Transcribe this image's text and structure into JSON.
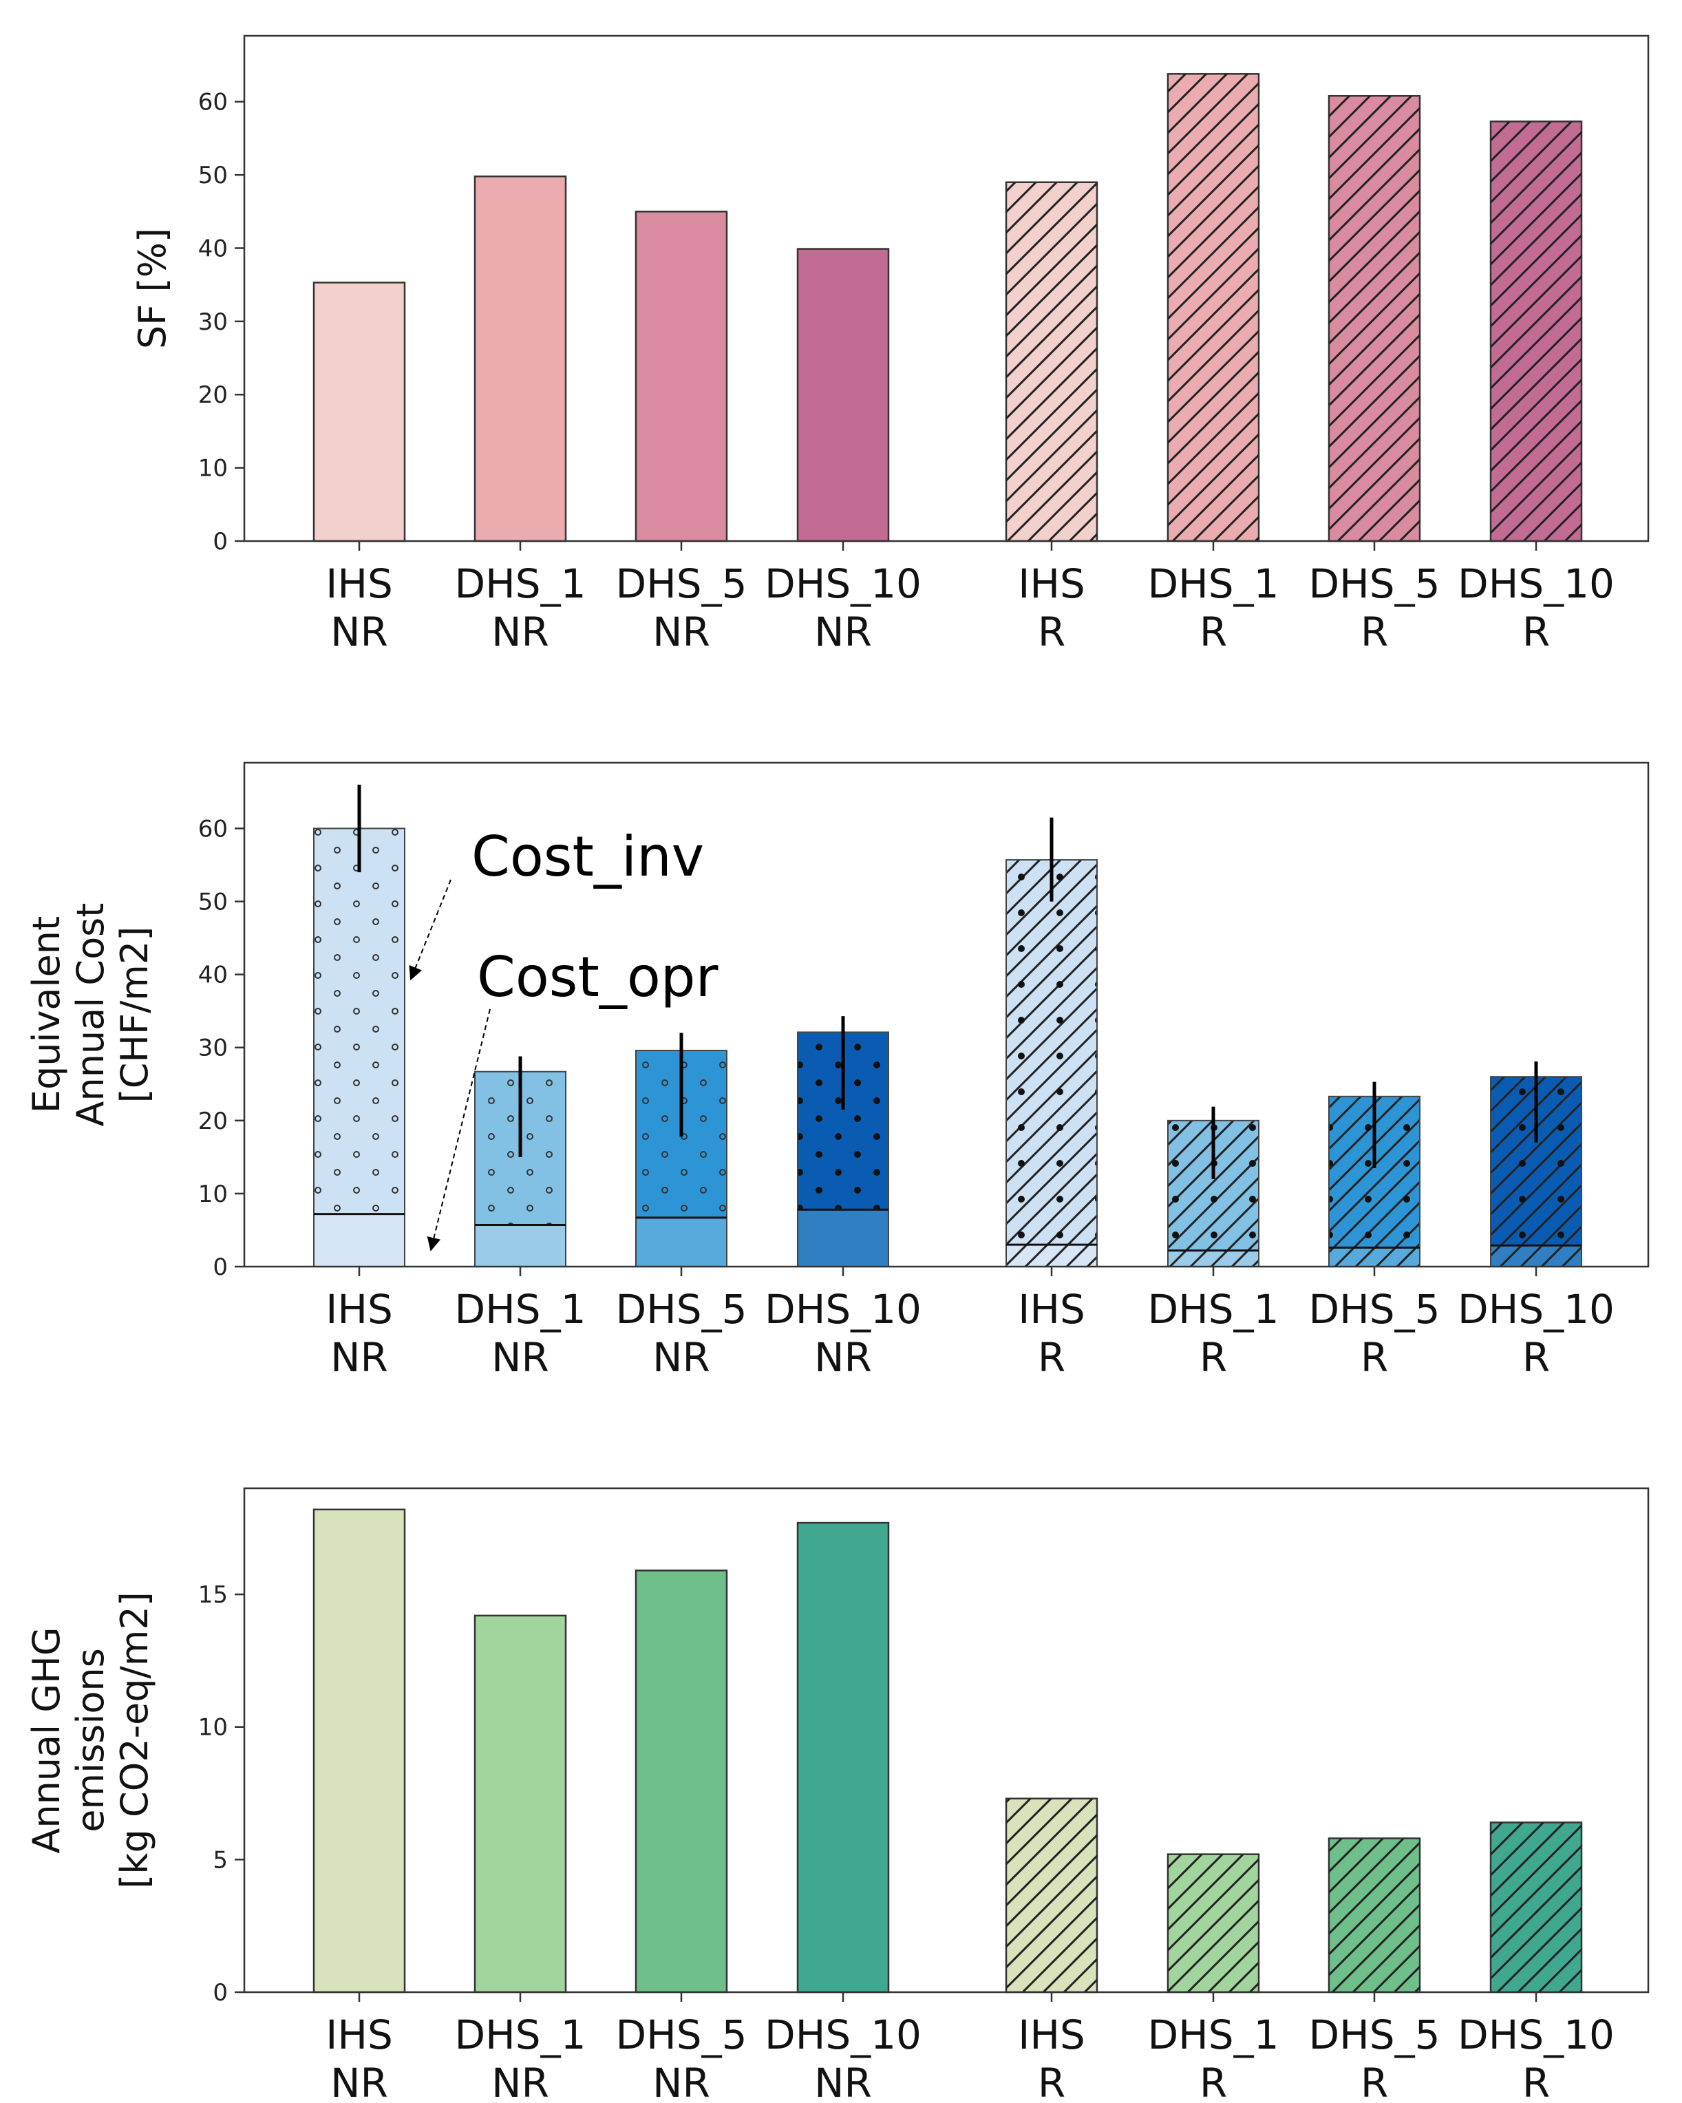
{
  "chart_data": [
    {
      "type": "bar",
      "id": "sf",
      "categories": [
        "IHS\nNR",
        "DHS_1\nNR",
        "DHS_5\nNR",
        "DHS_10\nNR",
        "IHS\nR",
        "DHS_1\nR",
        "DHS_5\nR",
        "DHS_10\nR"
      ],
      "ylabel": [
        "SF [%]"
      ],
      "ylim": [
        0,
        69
      ],
      "yticks": [
        0,
        10,
        20,
        30,
        40,
        50,
        60
      ],
      "values": [
        35.3,
        49.8,
        45.0,
        39.9,
        49.0,
        63.8,
        60.8,
        57.3
      ],
      "colors": [
        "#f2d0cc",
        "#ebacb0",
        "#d98ba0",
        "#c26c93",
        "#f2d0cc",
        "#ebacb0",
        "#d98ba0",
        "#c26c93"
      ],
      "hatch": [
        "none",
        "none",
        "none",
        "none",
        "diag",
        "diag",
        "diag",
        "diag"
      ]
    },
    {
      "type": "bar",
      "id": "cost",
      "categories": [
        "IHS\nNR",
        "DHS_1\nNR",
        "DHS_5\nNR",
        "DHS_10\nNR",
        "IHS\nR",
        "DHS_1\nR",
        "DHS_5\nR",
        "DHS_10\nR"
      ],
      "ylabel": [
        "Equivalent",
        "Annual Cost",
        "[CHF/m2]"
      ],
      "ylim": [
        0,
        69
      ],
      "yticks": [
        0,
        10,
        20,
        30,
        40,
        50,
        60
      ],
      "series": [
        {
          "name": "Cost_opr",
          "values": [
            7.2,
            5.7,
            6.7,
            7.8,
            3.0,
            2.2,
            2.6,
            2.9
          ]
        },
        {
          "name": "Cost_inv",
          "values": [
            52.8,
            21.0,
            22.9,
            24.3,
            52.7,
            17.8,
            20.7,
            23.1
          ]
        }
      ],
      "totals": [
        60.0,
        26.7,
        29.6,
        32.1,
        55.7,
        20.0,
        23.3,
        26.0
      ],
      "error_low": [
        54.0,
        15.0,
        17.8,
        21.5,
        50.0,
        12.0,
        13.5,
        17.0
      ],
      "error_high": [
        66.0,
        28.8,
        32.0,
        34.3,
        61.5,
        21.9,
        25.3,
        28.1
      ],
      "colors_inv": [
        "#cce1f3",
        "#82c0e4",
        "#2d95d6",
        "#0a5cb3",
        "#cce1f3",
        "#82c0e4",
        "#2d95d6",
        "#0a5cb3"
      ],
      "colors_opr": [
        "#d6e6f6",
        "#9acce9",
        "#58aadc",
        "#2f7fc2",
        "#d6e6f6",
        "#9acce9",
        "#58aadc",
        "#2f7fc2"
      ],
      "hatch": [
        "dots",
        "dots",
        "dots",
        "dots",
        "diagdots",
        "diagdots",
        "diagdots",
        "diagdots"
      ],
      "annotations": [
        "Cost_inv",
        "Cost_opr"
      ]
    },
    {
      "type": "bar",
      "id": "ghg",
      "categories": [
        "IHS\nNR",
        "DHS_1\nNR",
        "DHS_5\nNR",
        "DHS_10\nNR",
        "IHS\nR",
        "DHS_1\nR",
        "DHS_5\nR",
        "DHS_10\nR"
      ],
      "ylabel": [
        "Annual GHG",
        "emissions",
        "[kg CO2-eq/m2]"
      ],
      "ylim": [
        0,
        19
      ],
      "yticks": [
        0,
        5,
        10,
        15
      ],
      "values": [
        18.2,
        14.2,
        15.9,
        17.7,
        7.3,
        5.2,
        5.8,
        6.4
      ],
      "colors": [
        "#d8e2bb",
        "#a2d49d",
        "#6ebf8a",
        "#40a88e",
        "#d8e2bb",
        "#a2d49d",
        "#6ebf8a",
        "#40a88e"
      ],
      "hatch": [
        "none",
        "none",
        "none",
        "none",
        "diag",
        "diag",
        "diag",
        "diag"
      ]
    }
  ]
}
